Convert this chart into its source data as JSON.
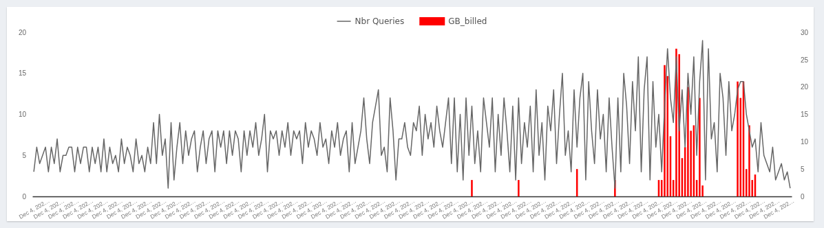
{
  "chart_data": {
    "type": "line",
    "legend": "top",
    "ylim": [
      0,
      20
    ],
    "yticks": [
      0,
      5,
      10,
      15,
      20
    ],
    "y2lim": [
      0,
      30
    ],
    "y2ticks": [
      0,
      5,
      10,
      15,
      20,
      25,
      30
    ],
    "categories": [
      "Dec 4, 202…",
      null,
      null,
      null,
      null,
      "Dec 4, 202…",
      null,
      null,
      null,
      null,
      "Dec 4, 202…",
      null,
      null,
      null,
      null,
      "Dec 4, 202…",
      null,
      null,
      null,
      null,
      "Dec 4, 202…",
      null,
      null,
      null,
      null,
      "Dec 4, 202…",
      null,
      null,
      null,
      null,
      "Dec 4, 202…",
      null,
      null,
      null,
      null,
      "Dec 4, 202…",
      null,
      null,
      null,
      null,
      "Dec 4, 202…",
      null,
      null,
      null,
      null,
      "Dec 4, 202…",
      null,
      null,
      null,
      null,
      "Dec 4, 202…",
      null,
      null,
      null,
      null,
      "Dec 4, 202…",
      null,
      null,
      null,
      null,
      "Dec 4, 202…",
      null,
      null,
      null,
      null,
      "Dec 4, 202…",
      null,
      null,
      null,
      null,
      "Dec 4, 202…",
      null,
      null,
      null,
      null,
      "Dec 4, 202…",
      null,
      null,
      null,
      null,
      "Dec 4, 202…",
      null,
      null,
      null,
      null,
      "Dec 4, 202…",
      null,
      null,
      null,
      null,
      "Dec 4, 202…",
      null,
      null,
      null,
      null,
      "Dec 4, 202…",
      null,
      null,
      null,
      null,
      "Dec 4, 202…",
      null,
      null,
      null,
      null,
      "Dec 4, 202…",
      null,
      null,
      null,
      null,
      "Dec 4, 202…",
      null,
      null,
      null,
      null,
      "Dec 4, 202…",
      null,
      null,
      null,
      null,
      "Dec 4, 202…",
      null,
      null,
      null,
      null,
      "Dec 4, 202…",
      null,
      null,
      null,
      null,
      "Dec 4, 202…",
      null,
      null,
      null,
      null,
      "Dec 4, 202…",
      null,
      null,
      null,
      null,
      "Dec 4, 202…",
      null,
      null,
      null,
      null,
      "Dec 4, 202…",
      null,
      null,
      null,
      null,
      "Dec 4, 202…",
      null,
      null,
      null,
      null,
      "Dec 4, 202…",
      null,
      null,
      null,
      null,
      "Dec 4, 202…",
      null,
      null,
      null,
      null,
      "Dec 4, 202…",
      null,
      null,
      null,
      null,
      "Dec 4, 202…",
      null,
      null,
      null,
      null,
      "Dec 4, 202…",
      null,
      null,
      null,
      null,
      "Dec 4, 202…",
      null,
      null,
      null,
      null,
      "Dec 4, 202…",
      null,
      null,
      null,
      null,
      "Dec 4, 202…",
      null,
      null,
      null,
      null,
      "Dec 4, 202…",
      null,
      null,
      null,
      null,
      "Dec 4, 202…",
      null,
      null,
      null,
      null,
      "Dec 4, 202…",
      null,
      null,
      null,
      null,
      "Dec 4, 202…",
      null,
      null,
      null,
      null,
      "Dec 4, 202…",
      null,
      null,
      null,
      null,
      "Dec 4, 202…",
      null,
      null,
      null,
      null,
      "Dec 4, 202…",
      null,
      null,
      null,
      null,
      "Dec 4, 202…",
      null,
      null,
      null,
      null,
      "Dec 4, 202…",
      null,
      null,
      null,
      null,
      "Dec 4, 202…",
      null,
      null,
      null,
      null,
      "Dec 4, 202…",
      null,
      null,
      null,
      null,
      "Dec 4, 202…",
      null,
      null,
      null,
      null,
      "Dec 4, 202…",
      null,
      null,
      null,
      null
    ],
    "series": [
      {
        "name": "Nbr Queries",
        "type": "line",
        "color": "#666666",
        "values": [
          3,
          6,
          4,
          5,
          6,
          3,
          6,
          4,
          7,
          3,
          5,
          5,
          6,
          6,
          3,
          6,
          4,
          6,
          6,
          3,
          6,
          4,
          6,
          3,
          7,
          3,
          6,
          4,
          5,
          3,
          7,
          4,
          6,
          5,
          3,
          7,
          4,
          5,
          3,
          6,
          4,
          9,
          4,
          10,
          5,
          7,
          1,
          9,
          2,
          6,
          9,
          4,
          8,
          5,
          7,
          8,
          3,
          6,
          8,
          4,
          7,
          8,
          3,
          8,
          6,
          8,
          4,
          8,
          5,
          8,
          7,
          3,
          8,
          5,
          8,
          6,
          9,
          5,
          7,
          10,
          3,
          8,
          7,
          8,
          5,
          8,
          6,
          9,
          5,
          8,
          7,
          8,
          4,
          9,
          6,
          8,
          7,
          5,
          9,
          6,
          7,
          4,
          8,
          6,
          9,
          5,
          7,
          8,
          3,
          9,
          4,
          6,
          8,
          12,
          7,
          4,
          9,
          11,
          13,
          5,
          6,
          3,
          12,
          8,
          2,
          7,
          7,
          9,
          6,
          5,
          9,
          8,
          11,
          5,
          10,
          7,
          9,
          6,
          11,
          8,
          6,
          9,
          12,
          4,
          12,
          3,
          10,
          2,
          12,
          5,
          11,
          4,
          8,
          3,
          12,
          9,
          6,
          12,
          3,
          10,
          5,
          12,
          8,
          3,
          11,
          2,
          12,
          4,
          9,
          6,
          11,
          3,
          13,
          5,
          9,
          2,
          11,
          8,
          13,
          4,
          10,
          15,
          5,
          8,
          3,
          13,
          6,
          12,
          15,
          2,
          14,
          8,
          4,
          13,
          7,
          10,
          3,
          12,
          6,
          1,
          12,
          3,
          15,
          11,
          4,
          14,
          8,
          17,
          3,
          13,
          17,
          2,
          14,
          6,
          10,
          3,
          11,
          18,
          12,
          9,
          17,
          8,
          13,
          6,
          15,
          10,
          17,
          5,
          14,
          19,
          2,
          18,
          7,
          9,
          3,
          15,
          12,
          5,
          14,
          8,
          10,
          13,
          14,
          14,
          10,
          8,
          6,
          7,
          3,
          9,
          5,
          4,
          3,
          6,
          2,
          3,
          4,
          2,
          3,
          1
        ]
      },
      {
        "name": "GB_billed",
        "type": "bar",
        "axis": "y2",
        "color": "#ff0000",
        "values": [
          null,
          null,
          null,
          null,
          null,
          null,
          null,
          null,
          null,
          null,
          null,
          null,
          null,
          null,
          null,
          null,
          null,
          null,
          null,
          null,
          null,
          null,
          null,
          null,
          null,
          null,
          null,
          null,
          null,
          null,
          null,
          null,
          null,
          null,
          null,
          null,
          null,
          null,
          null,
          null,
          null,
          null,
          null,
          null,
          null,
          null,
          null,
          null,
          null,
          null,
          null,
          null,
          null,
          null,
          null,
          null,
          null,
          null,
          null,
          null,
          null,
          null,
          null,
          null,
          null,
          null,
          null,
          null,
          null,
          null,
          null,
          null,
          null,
          null,
          null,
          null,
          null,
          null,
          null,
          null,
          null,
          null,
          null,
          null,
          null,
          null,
          null,
          null,
          null,
          null,
          null,
          null,
          null,
          null,
          null,
          null,
          null,
          null,
          null,
          null,
          null,
          null,
          null,
          null,
          null,
          null,
          null,
          null,
          null,
          null,
          null,
          null,
          null,
          null,
          null,
          null,
          null,
          null,
          null,
          null,
          null,
          null,
          null,
          null,
          null,
          null,
          null,
          null,
          null,
          null,
          null,
          null,
          null,
          null,
          null,
          null,
          null,
          null,
          null,
          null,
          null,
          null,
          null,
          null,
          null,
          null,
          null,
          null,
          null,
          null,
          3,
          null,
          null,
          null,
          null,
          null,
          null,
          null,
          null,
          null,
          null,
          null,
          null,
          null,
          null,
          null,
          3,
          null,
          null,
          null,
          null,
          null,
          null,
          null,
          null,
          null,
          null,
          null,
          null,
          null,
          null,
          null,
          null,
          null,
          null,
          null,
          5,
          null,
          null,
          null,
          null,
          null,
          null,
          null,
          null,
          null,
          null,
          null,
          null,
          3,
          null,
          null,
          null,
          null,
          null,
          null,
          null,
          null,
          null,
          null,
          null,
          null,
          null,
          null,
          3,
          3,
          24,
          22,
          11,
          3,
          27,
          26,
          7,
          9,
          20,
          12,
          13,
          3,
          18,
          2,
          null,
          null,
          null,
          null,
          null,
          null,
          null,
          null,
          null,
          null,
          null,
          21,
          18,
          21,
          5,
          13,
          3,
          4,
          null,
          null,
          null,
          null,
          null,
          null,
          null,
          null,
          null,
          null,
          null,
          null
        ]
      }
    ]
  }
}
